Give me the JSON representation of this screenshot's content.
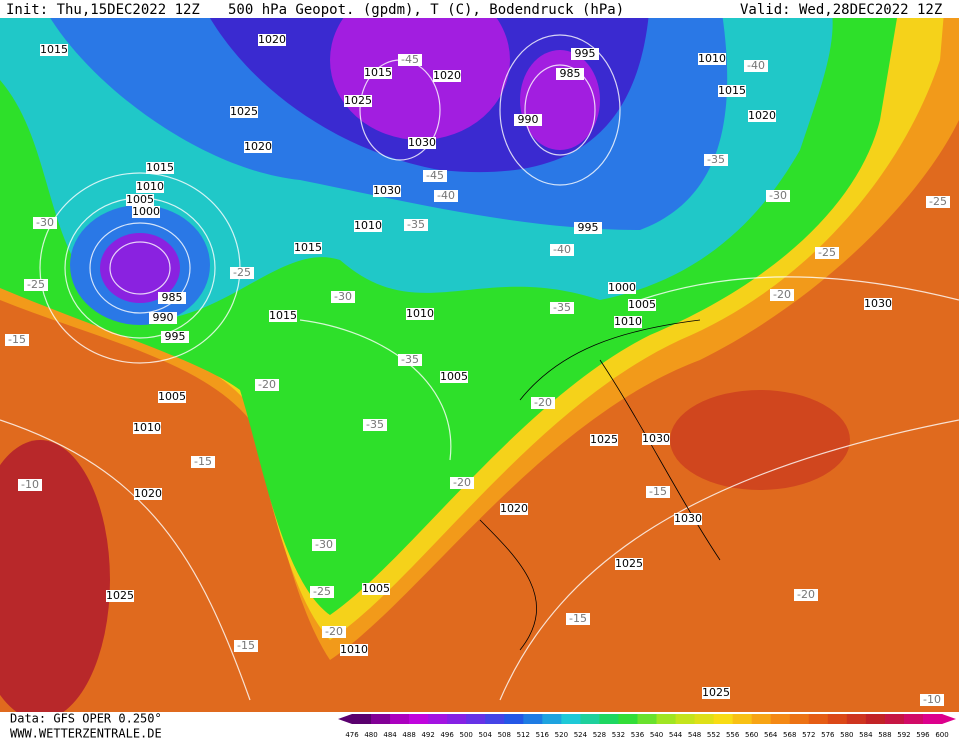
{
  "header": {
    "init": "Init: Thu,15DEC2022 12Z",
    "title": "500 hPa Geopot. (gpdm), T (C), Bodendruck (hPa)",
    "valid": "Valid: Wed,28DEC2022 12Z"
  },
  "footer": {
    "source": "Data: GFS OPER 0.250°",
    "site": "WWW.WETTERZENTRALE.DE"
  },
  "legend": {
    "ticks": [
      476,
      480,
      484,
      488,
      492,
      496,
      500,
      504,
      508,
      512,
      516,
      520,
      524,
      528,
      532,
      536,
      540,
      544,
      548,
      552,
      556,
      560,
      564,
      568,
      572,
      576,
      580,
      584,
      588,
      592,
      596,
      600
    ]
  },
  "map": {
    "pressure_labels": [
      1015,
      1020,
      1025,
      1020,
      1015,
      1010,
      1005,
      1000,
      985,
      990,
      995,
      1005,
      1010,
      1020,
      1025,
      1015,
      1010,
      1005,
      1005,
      1010,
      1020,
      1025,
      1030,
      1030,
      1025,
      1030,
      1025,
      1000,
      1005,
      1010,
      995,
      990,
      985,
      995,
      1010,
      1015,
      1020,
      1030,
      1030,
      1010,
      1015,
      1025,
      1015,
      1020
    ],
    "temperature_labels": [
      -45,
      -45,
      -40,
      -35,
      -40,
      -35,
      -30,
      -35,
      -35,
      -30,
      -25,
      -25,
      -20,
      -15,
      -15,
      -10,
      -20,
      -20,
      -15,
      -30,
      -25,
      -20,
      -15,
      -15,
      -20,
      -10,
      -25,
      -25,
      -20,
      -30,
      -35,
      -40
    ]
  }
}
